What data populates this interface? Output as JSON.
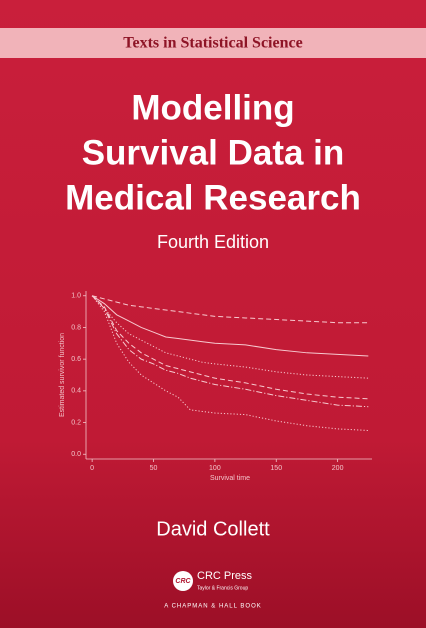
{
  "cover": {
    "series_title": "Texts in Statistical Science",
    "title_lines": [
      "Modelling",
      "Survival Data in",
      "Medical Research"
    ],
    "edition": "Fourth Edition",
    "author": "David Collett",
    "publisher": {
      "logo": "CRC",
      "name": "CRC Press",
      "group": "Taylor & Francis Group",
      "imprint": "A CHAPMAN & HALL BOOK"
    }
  },
  "chart_data": {
    "type": "line",
    "x_label": "Survival time",
    "y_label": "Estimated survivor function",
    "x": [
      0,
      10,
      20,
      30,
      40,
      50,
      60,
      70,
      80,
      90,
      100,
      125,
      150,
      175,
      200,
      225
    ],
    "series": [
      {
        "color": "#f7c9cf",
        "dash": "dashed",
        "values": [
          1.0,
          0.98,
          0.96,
          0.94,
          0.93,
          0.92,
          0.91,
          0.9,
          0.89,
          0.88,
          0.87,
          0.86,
          0.85,
          0.84,
          0.83,
          0.83
        ]
      },
      {
        "color": "#f7c9cf",
        "dash": "solid",
        "values": [
          1.0,
          0.95,
          0.88,
          0.84,
          0.8,
          0.77,
          0.74,
          0.73,
          0.72,
          0.71,
          0.7,
          0.69,
          0.66,
          0.64,
          0.63,
          0.62
        ]
      },
      {
        "color": "#f7c9cf",
        "dash": "dotted",
        "values": [
          1.0,
          0.92,
          0.83,
          0.76,
          0.72,
          0.68,
          0.64,
          0.62,
          0.6,
          0.58,
          0.57,
          0.55,
          0.52,
          0.5,
          0.49,
          0.48
        ]
      },
      {
        "color": "#f7c9cf",
        "dash": "dashed",
        "values": [
          1.0,
          0.93,
          0.78,
          0.7,
          0.64,
          0.6,
          0.56,
          0.54,
          0.52,
          0.5,
          0.48,
          0.45,
          0.41,
          0.38,
          0.36,
          0.35
        ]
      },
      {
        "color": "#f7c9cf",
        "dash": "dashdot",
        "values": [
          1.0,
          0.92,
          0.76,
          0.66,
          0.6,
          0.57,
          0.53,
          0.51,
          0.48,
          0.46,
          0.44,
          0.41,
          0.37,
          0.34,
          0.31,
          0.3
        ]
      },
      {
        "color": "#f7c9cf",
        "dash": "dotted",
        "values": [
          1.0,
          0.9,
          0.7,
          0.58,
          0.5,
          0.45,
          0.4,
          0.36,
          0.28,
          0.27,
          0.26,
          0.25,
          0.21,
          0.18,
          0.16,
          0.15
        ]
      }
    ],
    "xlim": [
      -5,
      228
    ],
    "xticks": [
      0,
      50,
      100,
      150,
      200
    ],
    "ylim": [
      -0.03,
      1.03
    ],
    "yticks": [
      {
        "value": 0,
        "label": "0.0"
      },
      0.2,
      0.4,
      0.6,
      0.8,
      {
        "value": 1,
        "label": "1.0"
      }
    ]
  }
}
